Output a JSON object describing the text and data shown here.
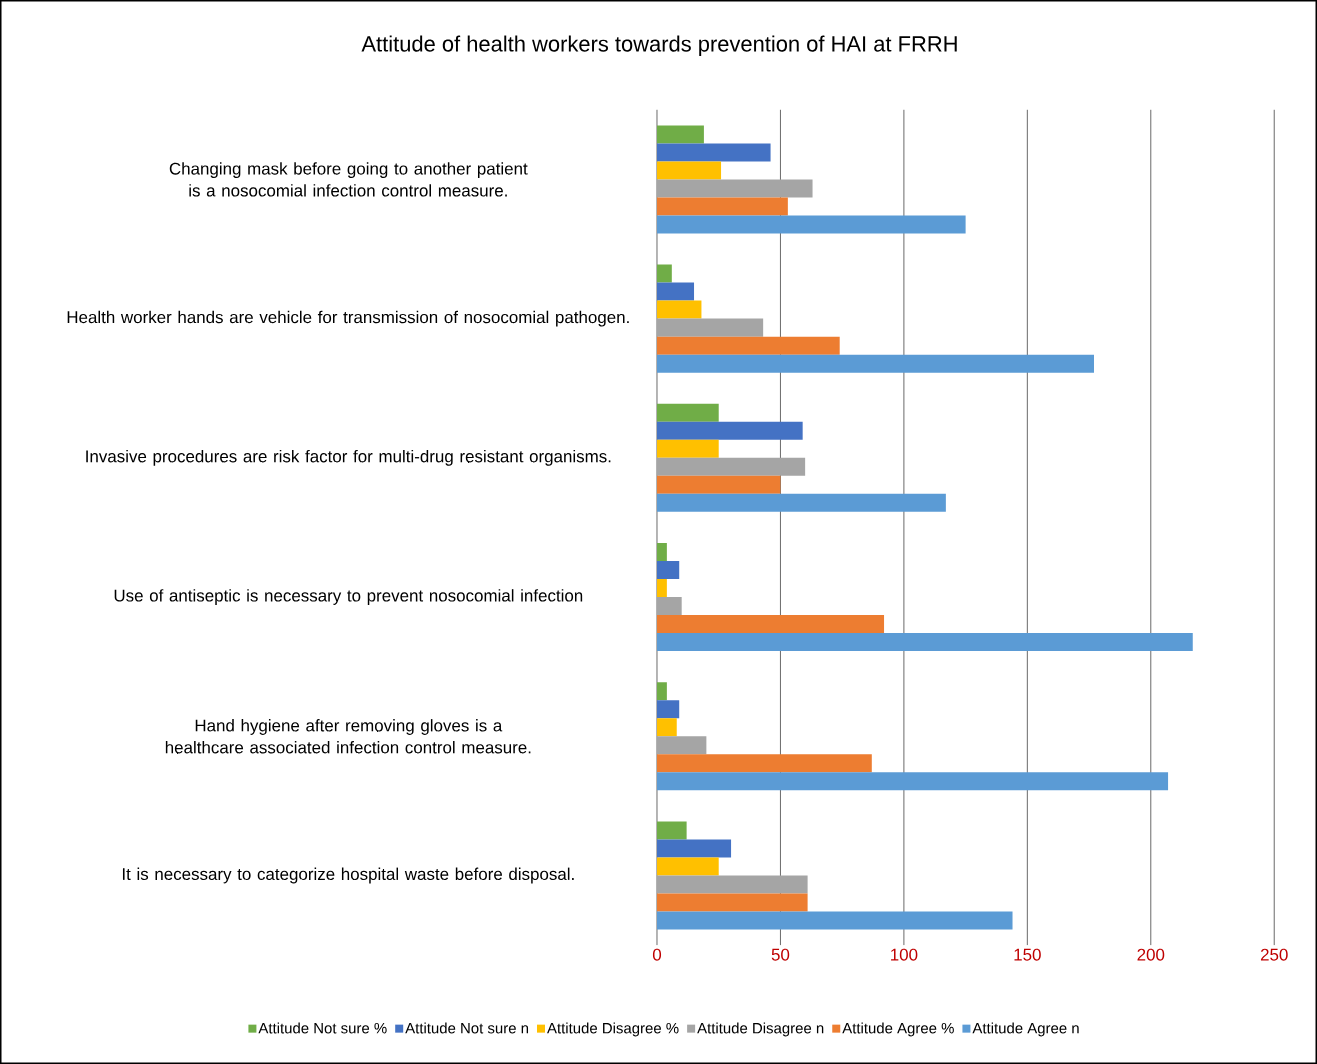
{
  "chart_data": {
    "type": "bar",
    "orientation": "horizontal",
    "title": "Attitude of health workers towards prevention of HAI at FRRH",
    "categories": [
      "Changing mask before going to another patient is a nosocomial infection control measure.",
      "Health worker hands are vehicle for transmission of nosocomial pathogen.",
      "Invasive procedures are risk factor for multi-drug resistant organisms.",
      "Use of antiseptic is necessary to prevent nosocomial infection",
      "Hand hygiene after removing gloves is a healthcare associated infection control measure.",
      "It is necessary to categorize hospital waste before disposal."
    ],
    "series": [
      {
        "name": "Attitude Not sure  %",
        "color": "#70ad47",
        "values": [
          19,
          6,
          25,
          4,
          4,
          12
        ]
      },
      {
        "name": "Attitude Not sure  n",
        "color": "#4472c4",
        "values": [
          46,
          15,
          59,
          9,
          9,
          30
        ]
      },
      {
        "name": "Attitude Disagree  %",
        "color": "#ffc000",
        "values": [
          26,
          18,
          25,
          4,
          8,
          25
        ]
      },
      {
        "name": "Attitude Disagree  n",
        "color": "#a5a5a5",
        "values": [
          63,
          43,
          60,
          10,
          20,
          61
        ]
      },
      {
        "name": "Attitude Agree  %",
        "color": "#ed7d31",
        "values": [
          53,
          74,
          50,
          92,
          87,
          61
        ]
      },
      {
        "name": "Attitude Agree  n",
        "color": "#5b9bd5",
        "values": [
          125,
          177,
          117,
          217,
          207,
          144
        ]
      }
    ],
    "xlim": [
      0,
      250
    ],
    "xticks": [
      0,
      50,
      100,
      150,
      200,
      250
    ],
    "grid": "x",
    "legend": "bottom"
  }
}
